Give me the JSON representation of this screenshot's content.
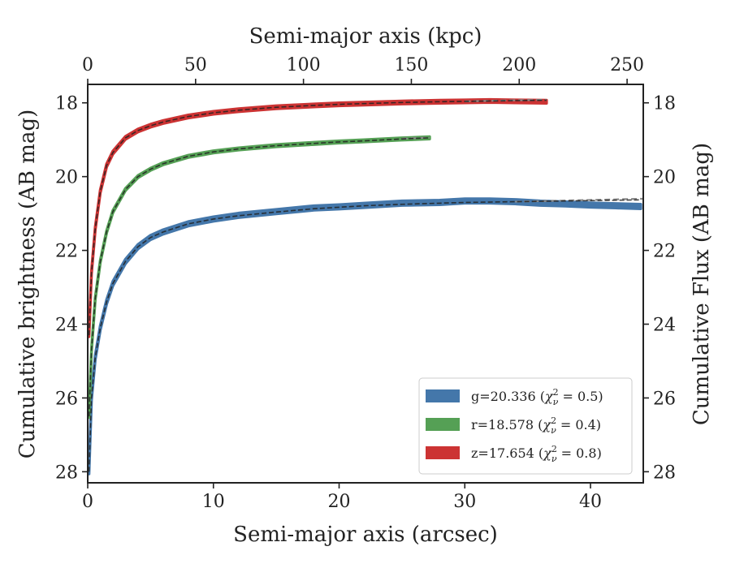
{
  "chart_data": {
    "type": "line",
    "xlabel": "Semi-major axis (arcsec)",
    "x2label": "Semi-major axis (kpc)",
    "ylabel": "Cumulative brightness (AB mag)",
    "y2label": "Cumulative Flux (AB mag)",
    "xlim": [
      0,
      44.2
    ],
    "x2lim": [
      0,
      257.5
    ],
    "ylim": [
      28.3,
      17.5
    ],
    "y_inverted": true,
    "x_ticks": [
      "0",
      "10",
      "20",
      "30",
      "40"
    ],
    "x_tick_values": [
      0,
      10,
      20,
      30,
      40
    ],
    "x2_ticks": [
      "0",
      "50",
      "100",
      "150",
      "200",
      "250"
    ],
    "x2_tick_values": [
      0,
      50,
      100,
      150,
      200,
      250
    ],
    "y_ticks": [
      "18",
      "20",
      "22",
      "24",
      "26",
      "28"
    ],
    "y_tick_values": [
      18,
      20,
      22,
      24,
      26,
      28
    ],
    "legend_position": "lower-right",
    "series": [
      {
        "name": "g=20.336 (χ²ν = 0.5)",
        "legend_label": "g=20.336 (",
        "legend_chi": "χ",
        "legend_sup": "2",
        "legend_sub": "ν",
        "legend_value": " = 0.5)",
        "color": "#4477aa",
        "band_halfwidth": 0.06,
        "x": [
          0.1,
          0.3,
          0.6,
          1,
          1.5,
          2,
          3,
          4,
          5,
          6,
          8,
          10,
          12,
          15,
          18,
          20,
          22,
          25,
          28,
          30,
          32,
          34,
          36,
          38,
          40,
          42,
          44
        ],
        "y": [
          28.0,
          26.0,
          24.9,
          24.1,
          23.4,
          22.9,
          22.3,
          21.9,
          21.65,
          21.5,
          21.28,
          21.15,
          21.05,
          20.95,
          20.85,
          20.82,
          20.78,
          20.72,
          20.7,
          20.66,
          20.66,
          20.68,
          20.72,
          20.74,
          20.77,
          20.79,
          20.81
        ]
      },
      {
        "name": "r=18.578 (χ²ν = 0.4)",
        "legend_label": "r=18.578 (",
        "legend_chi": "χ",
        "legend_sup": "2",
        "legend_sub": "ν",
        "legend_value": " = 0.4)",
        "color": "#55a055",
        "band_halfwidth": 0.03,
        "x": [
          0.1,
          0.3,
          0.6,
          1,
          1.5,
          2,
          3,
          4,
          5,
          6,
          8,
          10,
          12,
          15,
          18,
          20,
          22,
          25,
          27.2
        ],
        "y": [
          26.5,
          24.7,
          23.3,
          22.3,
          21.5,
          20.95,
          20.35,
          20.0,
          19.8,
          19.65,
          19.45,
          19.33,
          19.25,
          19.16,
          19.1,
          19.06,
          19.03,
          18.98,
          18.95
        ]
      },
      {
        "name": "z=17.654 (χ²ν = 0.8)",
        "legend_label": "z=17.654 (",
        "legend_chi": "χ",
        "legend_sup": "2",
        "legend_sub": "ν",
        "legend_value": " = 0.8)",
        "color": "#cc3333",
        "band_halfwidth": 0.04,
        "x": [
          0.1,
          0.3,
          0.6,
          1,
          1.5,
          2,
          3,
          4,
          5,
          6,
          8,
          10,
          12,
          15,
          18,
          20,
          22,
          25,
          28,
          30,
          32,
          34,
          36.5
        ],
        "y": [
          24.3,
          22.6,
          21.4,
          20.4,
          19.7,
          19.35,
          18.95,
          18.75,
          18.62,
          18.52,
          18.37,
          18.27,
          18.2,
          18.12,
          18.07,
          18.04,
          18.02,
          17.99,
          17.97,
          17.96,
          17.95,
          17.96,
          17.97
        ]
      }
    ],
    "model_lines": [
      {
        "color": "#222222",
        "x": [
          0.1,
          0.3,
          0.6,
          1,
          1.5,
          2,
          3,
          4,
          5,
          6,
          8,
          10,
          12,
          15,
          18,
          20,
          22,
          25,
          28,
          30,
          32,
          34,
          36,
          38,
          40,
          42,
          44
        ],
        "y": [
          28.0,
          26.0,
          24.9,
          24.1,
          23.4,
          22.9,
          22.3,
          21.9,
          21.65,
          21.5,
          21.28,
          21.15,
          21.06,
          20.96,
          20.87,
          20.83,
          20.79,
          20.75,
          20.72,
          20.7,
          20.69,
          20.68,
          20.67,
          20.66,
          20.65,
          20.64,
          20.63
        ]
      },
      {
        "color": "#222222",
        "x": [
          0.1,
          0.3,
          0.6,
          1,
          1.5,
          2,
          3,
          4,
          5,
          6,
          8,
          10,
          12,
          15,
          18,
          20,
          22,
          25,
          27.2
        ],
        "y": [
          26.5,
          24.7,
          23.3,
          22.3,
          21.5,
          20.95,
          20.35,
          20.0,
          19.8,
          19.65,
          19.45,
          19.33,
          19.25,
          19.16,
          19.1,
          19.06,
          19.03,
          18.98,
          18.95
        ]
      },
      {
        "color": "#222222",
        "x": [
          0.1,
          0.3,
          0.6,
          1,
          1.5,
          2,
          3,
          4,
          5,
          6,
          8,
          10,
          12,
          15,
          18,
          20,
          22,
          25,
          28,
          30,
          32,
          34,
          36.5
        ],
        "y": [
          24.3,
          22.6,
          21.4,
          20.4,
          19.7,
          19.35,
          18.95,
          18.75,
          18.62,
          18.52,
          18.37,
          18.27,
          18.2,
          18.12,
          18.07,
          18.04,
          18.02,
          17.99,
          17.97,
          17.96,
          17.95,
          17.94,
          17.93
        ]
      }
    ],
    "extrapolations": [
      {
        "color": "#888888",
        "x": [
          34,
          44.2
        ],
        "y": [
          20.68,
          20.6
        ]
      },
      {
        "color": "#888888",
        "x": [
          25,
          27.2
        ],
        "y": [
          18.97,
          18.94
        ]
      },
      {
        "color": "#888888",
        "x": [
          30,
          34,
          36.5
        ],
        "y": [
          17.96,
          17.93,
          17.92
        ]
      }
    ]
  }
}
